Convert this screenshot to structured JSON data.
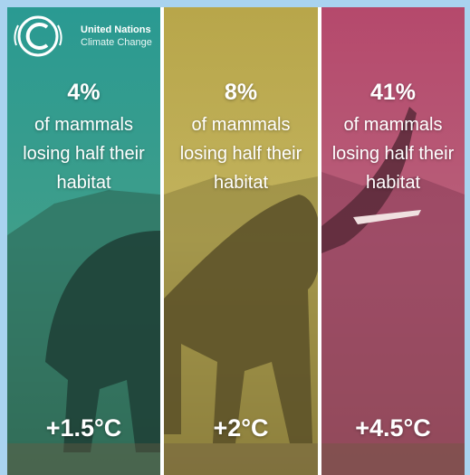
{
  "logo": {
    "line1": "United Nations",
    "line2": "Climate Change"
  },
  "panels": [
    {
      "percent": "4%",
      "description": [
        "of mammals",
        "losing half their",
        "habitat"
      ],
      "warming": "+1.5°C"
    },
    {
      "percent": "8%",
      "description": [
        "of mammals",
        "losing half their",
        "habitat"
      ],
      "warming": "+2°C"
    },
    {
      "percent": "41%",
      "description": [
        "of mammals",
        "losing half their",
        "habitat"
      ],
      "warming": "+4.5°C"
    }
  ]
}
